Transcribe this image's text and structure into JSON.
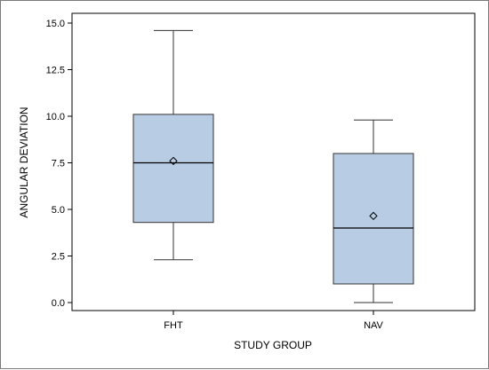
{
  "chart_data": {
    "type": "boxplot",
    "xlabel": "STUDY GROUP",
    "ylabel": "ANGULAR DEVIATION",
    "ylim": [
      0,
      15
    ],
    "yticks": [
      "0.0",
      "2.5",
      "5.0",
      "7.5",
      "10.0",
      "12.5",
      "15.0"
    ],
    "yticks_values": [
      0,
      2.5,
      5,
      7.5,
      10,
      12.5,
      15
    ],
    "grid": false,
    "colors": {
      "box_fill": "#b8cce4",
      "box_stroke": "#333333",
      "frame": "#000000"
    },
    "categories": [
      "FHT",
      "NAV"
    ],
    "boxes": [
      {
        "label": "FHT",
        "min": 2.3,
        "q1": 4.3,
        "median": 7.5,
        "q3": 10.1,
        "max": 14.6,
        "mean": 7.6
      },
      {
        "label": "NAV",
        "min": 0.0,
        "q1": 1.0,
        "median": 4.0,
        "q3": 8.0,
        "max": 9.8,
        "mean": 4.65
      }
    ]
  }
}
